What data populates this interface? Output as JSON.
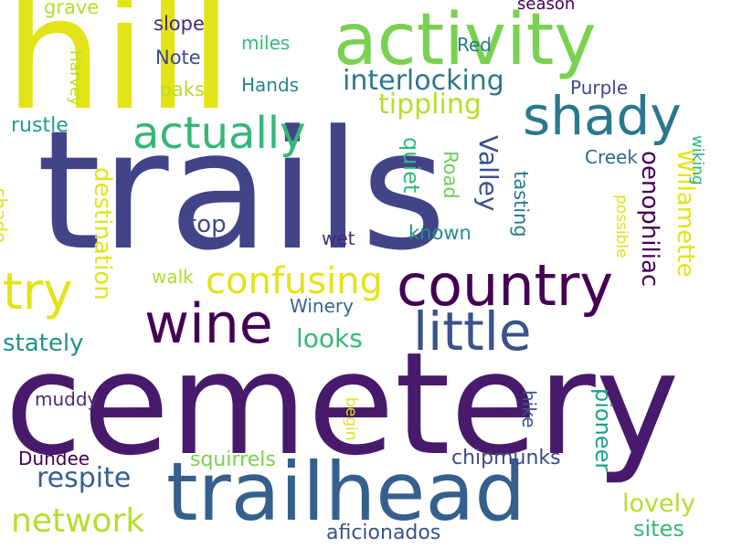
{
  "words": [
    {
      "text": "cemetery",
      "color": "#481a6c",
      "weight": 1.0,
      "rotated": false
    },
    {
      "text": "trails",
      "color": "#414487",
      "weight": 0.95,
      "rotated": false
    },
    {
      "text": "hill",
      "color": "#e2e418",
      "weight": 0.85,
      "rotated": false
    },
    {
      "text": "trailhead",
      "color": "#355f8d",
      "weight": 0.7,
      "rotated": false
    },
    {
      "text": "activity",
      "color": "#7ad151",
      "weight": 0.65,
      "rotated": false
    },
    {
      "text": "country",
      "color": "#440154",
      "weight": 0.55,
      "rotated": false
    },
    {
      "text": "wine",
      "color": "#440154",
      "weight": 0.5,
      "rotated": false
    },
    {
      "text": "little",
      "color": "#3b528b",
      "weight": 0.5,
      "rotated": false
    },
    {
      "text": "shady",
      "color": "#2a788e",
      "weight": 0.5,
      "rotated": false
    },
    {
      "text": "try",
      "color": "#e2e418",
      "weight": 0.45,
      "rotated": false
    },
    {
      "text": "actually",
      "color": "#35b779",
      "weight": 0.4,
      "rotated": false
    },
    {
      "text": "confusing",
      "color": "#e2e418",
      "weight": 0.35,
      "rotated": false
    },
    {
      "text": "network",
      "color": "#b5de2b",
      "weight": 0.3,
      "rotated": false
    },
    {
      "text": "respite",
      "color": "#355f8d",
      "weight": 0.28,
      "rotated": false
    },
    {
      "text": "interlocking",
      "color": "#2a788e",
      "weight": 0.25,
      "rotated": false
    },
    {
      "text": "tippling",
      "color": "#b5de2b",
      "weight": 0.25,
      "rotated": false
    },
    {
      "text": "Willamette",
      "color": "#e2e418",
      "weight": 0.27,
      "rotated": true
    },
    {
      "text": "oenophiliac",
      "color": "#440154",
      "weight": 0.25,
      "rotated": true
    },
    {
      "text": "Valley",
      "color": "#3b528b",
      "weight": 0.27,
      "rotated": true
    },
    {
      "text": "destination",
      "color": "#e2e418",
      "weight": 0.25,
      "rotated": true
    },
    {
      "text": "pioneer",
      "color": "#1f9e89",
      "weight": 0.22,
      "rotated": true
    },
    {
      "text": "quiet",
      "color": "#35b779",
      "weight": 0.2,
      "rotated": true
    },
    {
      "text": "lovely",
      "color": "#b5de2b",
      "weight": 0.22,
      "rotated": false
    },
    {
      "text": "looks",
      "color": "#35b779",
      "weight": 0.22,
      "rotated": false
    },
    {
      "text": "stately",
      "color": "#21918c",
      "weight": 0.2,
      "rotated": false
    },
    {
      "text": "top",
      "color": "#3e4989",
      "weight": 0.2,
      "rotated": false
    },
    {
      "text": "sites",
      "color": "#35b779",
      "weight": 0.2,
      "rotated": false
    },
    {
      "text": "Road",
      "color": "#6ece58",
      "weight": 0.17,
      "rotated": true
    },
    {
      "text": "tasting",
      "color": "#2a788e",
      "weight": 0.17,
      "rotated": true
    },
    {
      "text": "chipmunks",
      "color": "#3e4989",
      "weight": 0.17,
      "rotated": false
    },
    {
      "text": "squirrels",
      "color": "#7ad151",
      "weight": 0.17,
      "rotated": false
    },
    {
      "text": "aficionados",
      "color": "#3b528b",
      "weight": 0.17,
      "rotated": false
    },
    {
      "text": "muddy",
      "color": "#472d7b",
      "weight": 0.15,
      "rotated": false
    },
    {
      "text": "Dundee",
      "color": "#440154",
      "weight": 0.15,
      "rotated": false
    },
    {
      "text": "rustle",
      "color": "#1f9e89",
      "weight": 0.15,
      "rotated": false
    },
    {
      "text": "oaks",
      "color": "#b5de2b",
      "weight": 0.15,
      "rotated": false
    },
    {
      "text": "Note",
      "color": "#3e4989",
      "weight": 0.15,
      "rotated": false
    },
    {
      "text": "slope",
      "color": "#482878",
      "weight": 0.15,
      "rotated": false
    },
    {
      "text": "grave",
      "color": "#b5de2b",
      "weight": 0.15,
      "rotated": false
    },
    {
      "text": "Hands",
      "color": "#25848e",
      "weight": 0.15,
      "rotated": false
    },
    {
      "text": "miles",
      "color": "#35b779",
      "weight": 0.15,
      "rotated": false
    },
    {
      "text": "Red",
      "color": "#2a788e",
      "weight": 0.15,
      "rotated": false
    },
    {
      "text": "Purple",
      "color": "#3e4989",
      "weight": 0.15,
      "rotated": false
    },
    {
      "text": "season",
      "color": "#440154",
      "weight": 0.13,
      "rotated": false
    },
    {
      "text": "Creek",
      "color": "#31688e",
      "weight": 0.15,
      "rotated": false
    },
    {
      "text": "wiking",
      "color": "#2db27d",
      "weight": 0.13,
      "rotated": true
    },
    {
      "text": "possible",
      "color": "#dde318",
      "weight": 0.13,
      "rotated": true
    },
    {
      "text": "known",
      "color": "#21918c",
      "weight": 0.15,
      "rotated": false
    },
    {
      "text": "wet",
      "color": "#482878",
      "weight": 0.15,
      "rotated": false
    },
    {
      "text": "walk",
      "color": "#addc30",
      "weight": 0.15,
      "rotated": false
    },
    {
      "text": "Winery",
      "color": "#31688e",
      "weight": 0.15,
      "rotated": false
    },
    {
      "text": "shade",
      "color": "#dde318",
      "weight": 0.15,
      "rotated": true
    },
    {
      "text": "Harvey",
      "color": "#b5de2b",
      "weight": 0.13,
      "rotated": true
    },
    {
      "text": "begin",
      "color": "#dde318",
      "weight": 0.13,
      "rotated": true
    },
    {
      "text": "hike",
      "color": "#3b528b",
      "weight": 0.15,
      "rotated": true
    }
  ]
}
